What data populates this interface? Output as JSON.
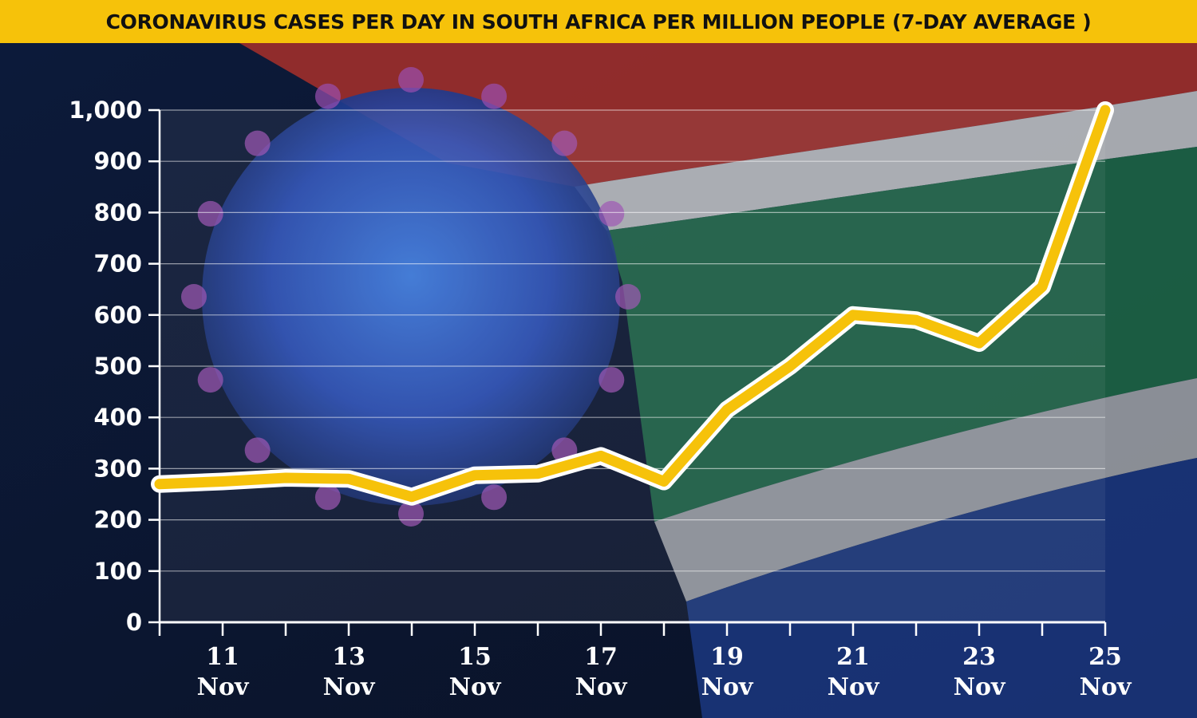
{
  "title": "CORONAVIRUS CASES PER DAY IN SOUTH AFRICA PER MILLION PEOPLE  (7-DAY AVERAGE )",
  "colors": {
    "title_bar": "#f6c20a",
    "line": "#f6c20a",
    "line_outline": "#ffffff",
    "text": "#ffffff",
    "flag_red": "#c0392b",
    "flag_white": "#e8e8e8",
    "flag_green": "#1f7a4d",
    "flag_blue": "#1d3f8f",
    "virus": "#2a5fc7"
  },
  "chart_data": {
    "type": "line",
    "title": "CORONAVIRUS CASES PER DAY IN SOUTH AFRICA PER MILLION PEOPLE  (7-DAY AVERAGE )",
    "xlabel": "",
    "ylabel": "",
    "ylim": [
      0,
      1000
    ],
    "xlim": [
      10,
      25
    ],
    "yticks": [
      {
        "value": 0,
        "label": "0"
      },
      {
        "value": 100,
        "label": "100"
      },
      {
        "value": 200,
        "label": "200"
      },
      {
        "value": 300,
        "label": "300"
      },
      {
        "value": 400,
        "label": "400"
      },
      {
        "value": 500,
        "label": "500"
      },
      {
        "value": 600,
        "label": "600"
      },
      {
        "value": 700,
        "label": "700"
      },
      {
        "value": 800,
        "label": "800"
      },
      {
        "value": 900,
        "label": "900"
      },
      {
        "value": 1000,
        "label": "1,000"
      }
    ],
    "xticks": [
      {
        "day": 11,
        "line1": "11",
        "line2": "Nov"
      },
      {
        "day": 13,
        "line1": "13",
        "line2": "Nov"
      },
      {
        "day": 15,
        "line1": "15",
        "line2": "Nov"
      },
      {
        "day": 17,
        "line1": "17",
        "line2": "Nov"
      },
      {
        "day": 19,
        "line1": "19",
        "line2": "Nov"
      },
      {
        "day": 21,
        "line1": "21",
        "line2": "Nov"
      },
      {
        "day": 23,
        "line1": "23",
        "line2": "Nov"
      },
      {
        "day": 25,
        "line1": "25",
        "line2": "Nov"
      }
    ],
    "grid": true,
    "legend": "none",
    "series": [
      {
        "x": [
          10,
          11,
          12,
          13,
          14,
          15,
          16,
          17,
          18,
          19,
          20,
          21,
          22,
          23,
          24,
          25
        ],
        "values": [
          270,
          275,
          282,
          280,
          245,
          287,
          290,
          325,
          275,
          415,
          500,
          600,
          590,
          545,
          655,
          1000
        ]
      }
    ]
  }
}
